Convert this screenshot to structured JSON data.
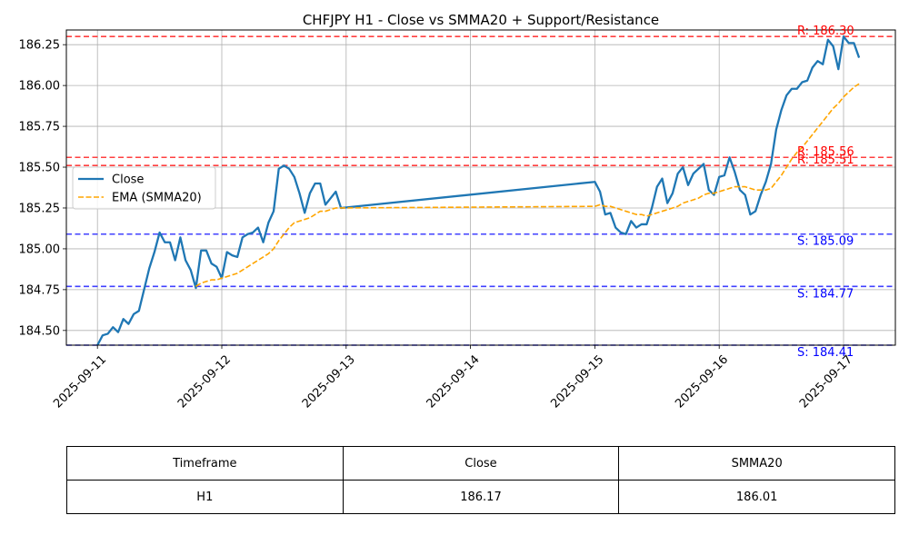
{
  "chart_data": {
    "type": "line",
    "title": "CHFJPY H1 - Close vs SMMA20 + Support/Resistance",
    "xlabel": "",
    "ylabel": "",
    "xlim": [
      "2025-09-10T18:00",
      "2025-09-17T10:00"
    ],
    "ylim": [
      184.41,
      186.34
    ],
    "x_ticks": [
      "2025-09-11",
      "2025-09-12",
      "2025-09-13",
      "2025-09-14",
      "2025-09-15",
      "2025-09-16",
      "2025-09-17"
    ],
    "y_ticks": [
      "184.50",
      "184.75",
      "185.00",
      "185.25",
      "185.50",
      "185.75",
      "186.00",
      "186.25"
    ],
    "grid": true,
    "legend_position": "left",
    "series": [
      {
        "name": "Close",
        "color": "#1f77b4",
        "style": "solid",
        "points": [
          [
            "2025-09-11T00:00",
            184.41
          ],
          [
            "2025-09-11T01:00",
            184.47
          ],
          [
            "2025-09-11T02:00",
            184.48
          ],
          [
            "2025-09-11T03:00",
            184.52
          ],
          [
            "2025-09-11T04:00",
            184.49
          ],
          [
            "2025-09-11T05:00",
            184.57
          ],
          [
            "2025-09-11T06:00",
            184.54
          ],
          [
            "2025-09-11T07:00",
            184.6
          ],
          [
            "2025-09-11T08:00",
            184.62
          ],
          [
            "2025-09-11T09:00",
            184.75
          ],
          [
            "2025-09-11T10:00",
            184.88
          ],
          [
            "2025-09-11T11:00",
            184.98
          ],
          [
            "2025-09-11T12:00",
            185.1
          ],
          [
            "2025-09-11T13:00",
            185.04
          ],
          [
            "2025-09-11T14:00",
            185.04
          ],
          [
            "2025-09-11T15:00",
            184.93
          ],
          [
            "2025-09-11T16:00",
            185.07
          ],
          [
            "2025-09-11T17:00",
            184.93
          ],
          [
            "2025-09-11T18:00",
            184.87
          ],
          [
            "2025-09-11T19:00",
            184.76
          ],
          [
            "2025-09-11T20:00",
            184.99
          ],
          [
            "2025-09-11T21:00",
            184.99
          ],
          [
            "2025-09-11T22:00",
            184.91
          ],
          [
            "2025-09-11T23:00",
            184.89
          ],
          [
            "2025-09-12T00:00",
            184.82
          ],
          [
            "2025-09-12T01:00",
            184.98
          ],
          [
            "2025-09-12T02:00",
            184.96
          ],
          [
            "2025-09-12T03:00",
            184.95
          ],
          [
            "2025-09-12T04:00",
            185.07
          ],
          [
            "2025-09-12T05:00",
            185.09
          ],
          [
            "2025-09-12T06:00",
            185.1
          ],
          [
            "2025-09-12T07:00",
            185.13
          ],
          [
            "2025-09-12T08:00",
            185.04
          ],
          [
            "2025-09-12T09:00",
            185.16
          ],
          [
            "2025-09-12T10:00",
            185.23
          ],
          [
            "2025-09-12T11:00",
            185.49
          ],
          [
            "2025-09-12T12:00",
            185.51
          ],
          [
            "2025-09-12T13:00",
            185.49
          ],
          [
            "2025-09-12T14:00",
            185.44
          ],
          [
            "2025-09-12T15:00",
            185.34
          ],
          [
            "2025-09-12T16:00",
            185.22
          ],
          [
            "2025-09-12T17:00",
            185.34
          ],
          [
            "2025-09-12T18:00",
            185.4
          ],
          [
            "2025-09-12T19:00",
            185.4
          ],
          [
            "2025-09-12T20:00",
            185.27
          ],
          [
            "2025-09-12T21:00",
            185.31
          ],
          [
            "2025-09-12T22:00",
            185.35
          ],
          [
            "2025-09-12T23:00",
            185.25
          ],
          [
            "2025-09-15T00:00",
            185.41
          ],
          [
            "2025-09-15T01:00",
            185.35
          ],
          [
            "2025-09-15T02:00",
            185.21
          ],
          [
            "2025-09-15T03:00",
            185.22
          ],
          [
            "2025-09-15T04:00",
            185.13
          ],
          [
            "2025-09-15T05:00",
            185.1
          ],
          [
            "2025-09-15T06:00",
            185.09
          ],
          [
            "2025-09-15T07:00",
            185.17
          ],
          [
            "2025-09-15T08:00",
            185.13
          ],
          [
            "2025-09-15T09:00",
            185.15
          ],
          [
            "2025-09-15T10:00",
            185.15
          ],
          [
            "2025-09-15T11:00",
            185.25
          ],
          [
            "2025-09-15T12:00",
            185.38
          ],
          [
            "2025-09-15T13:00",
            185.43
          ],
          [
            "2025-09-15T14:00",
            185.28
          ],
          [
            "2025-09-15T15:00",
            185.34
          ],
          [
            "2025-09-15T16:00",
            185.46
          ],
          [
            "2025-09-15T17:00",
            185.5
          ],
          [
            "2025-09-15T18:00",
            185.39
          ],
          [
            "2025-09-15T19:00",
            185.46
          ],
          [
            "2025-09-15T20:00",
            185.49
          ],
          [
            "2025-09-15T21:00",
            185.52
          ],
          [
            "2025-09-15T22:00",
            185.36
          ],
          [
            "2025-09-15T23:00",
            185.33
          ],
          [
            "2025-09-16T00:00",
            185.44
          ],
          [
            "2025-09-16T01:00",
            185.45
          ],
          [
            "2025-09-16T02:00",
            185.56
          ],
          [
            "2025-09-16T03:00",
            185.47
          ],
          [
            "2025-09-16T04:00",
            185.36
          ],
          [
            "2025-09-16T05:00",
            185.33
          ],
          [
            "2025-09-16T06:00",
            185.21
          ],
          [
            "2025-09-16T07:00",
            185.23
          ],
          [
            "2025-09-16T08:00",
            185.33
          ],
          [
            "2025-09-16T09:00",
            185.41
          ],
          [
            "2025-09-16T10:00",
            185.52
          ],
          [
            "2025-09-16T11:00",
            185.73
          ],
          [
            "2025-09-16T12:00",
            185.85
          ],
          [
            "2025-09-16T13:00",
            185.94
          ],
          [
            "2025-09-16T14:00",
            185.98
          ],
          [
            "2025-09-16T15:00",
            185.98
          ],
          [
            "2025-09-16T16:00",
            186.02
          ],
          [
            "2025-09-16T17:00",
            186.03
          ],
          [
            "2025-09-16T18:00",
            186.11
          ],
          [
            "2025-09-16T19:00",
            186.15
          ],
          [
            "2025-09-16T20:00",
            186.13
          ],
          [
            "2025-09-16T21:00",
            186.28
          ],
          [
            "2025-09-16T22:00",
            186.24
          ],
          [
            "2025-09-16T23:00",
            186.1
          ],
          [
            "2025-09-17T00:00",
            186.3
          ],
          [
            "2025-09-17T01:00",
            186.26
          ],
          [
            "2025-09-17T02:00",
            186.26
          ],
          [
            "2025-09-17T03:00",
            186.17
          ]
        ]
      },
      {
        "name": "EMA (SMMA20)",
        "color": "#ffa500",
        "style": "dashed",
        "points": [
          [
            "2025-09-11T19:00",
            184.77
          ],
          [
            "2025-09-11T20:00",
            184.79
          ],
          [
            "2025-09-11T21:00",
            184.8
          ],
          [
            "2025-09-11T22:00",
            184.81
          ],
          [
            "2025-09-11T23:00",
            184.81
          ],
          [
            "2025-09-12T00:00",
            184.82
          ],
          [
            "2025-09-12T01:00",
            184.83
          ],
          [
            "2025-09-12T02:00",
            184.84
          ],
          [
            "2025-09-12T03:00",
            184.85
          ],
          [
            "2025-09-12T04:00",
            184.87
          ],
          [
            "2025-09-12T05:00",
            184.89
          ],
          [
            "2025-09-12T06:00",
            184.91
          ],
          [
            "2025-09-12T07:00",
            184.93
          ],
          [
            "2025-09-12T08:00",
            184.95
          ],
          [
            "2025-09-12T09:00",
            184.97
          ],
          [
            "2025-09-12T10:00",
            185.0
          ],
          [
            "2025-09-12T11:00",
            185.05
          ],
          [
            "2025-09-12T12:00",
            185.09
          ],
          [
            "2025-09-12T13:00",
            185.13
          ],
          [
            "2025-09-12T14:00",
            185.16
          ],
          [
            "2025-09-12T15:00",
            185.17
          ],
          [
            "2025-09-12T16:00",
            185.18
          ],
          [
            "2025-09-12T17:00",
            185.19
          ],
          [
            "2025-09-12T18:00",
            185.21
          ],
          [
            "2025-09-12T19:00",
            185.23
          ],
          [
            "2025-09-12T20:00",
            185.23
          ],
          [
            "2025-09-12T21:00",
            185.24
          ],
          [
            "2025-09-12T22:00",
            185.25
          ],
          [
            "2025-09-12T23:00",
            185.25
          ],
          [
            "2025-09-15T00:00",
            185.26
          ],
          [
            "2025-09-15T01:00",
            185.27
          ],
          [
            "2025-09-15T02:00",
            185.26
          ],
          [
            "2025-09-15T03:00",
            185.26
          ],
          [
            "2025-09-15T04:00",
            185.25
          ],
          [
            "2025-09-15T05:00",
            185.24
          ],
          [
            "2025-09-15T06:00",
            185.23
          ],
          [
            "2025-09-15T07:00",
            185.22
          ],
          [
            "2025-09-15T08:00",
            185.21
          ],
          [
            "2025-09-15T09:00",
            185.21
          ],
          [
            "2025-09-15T10:00",
            185.2
          ],
          [
            "2025-09-15T11:00",
            185.21
          ],
          [
            "2025-09-15T12:00",
            185.22
          ],
          [
            "2025-09-15T13:00",
            185.23
          ],
          [
            "2025-09-15T14:00",
            185.24
          ],
          [
            "2025-09-15T15:00",
            185.25
          ],
          [
            "2025-09-15T16:00",
            185.26
          ],
          [
            "2025-09-15T17:00",
            185.28
          ],
          [
            "2025-09-15T18:00",
            185.29
          ],
          [
            "2025-09-15T19:00",
            185.3
          ],
          [
            "2025-09-15T20:00",
            185.31
          ],
          [
            "2025-09-15T21:00",
            185.33
          ],
          [
            "2025-09-15T22:00",
            185.34
          ],
          [
            "2025-09-15T23:00",
            185.34
          ],
          [
            "2025-09-16T00:00",
            185.35
          ],
          [
            "2025-09-16T01:00",
            185.36
          ],
          [
            "2025-09-16T02:00",
            185.37
          ],
          [
            "2025-09-16T03:00",
            185.38
          ],
          [
            "2025-09-16T04:00",
            185.38
          ],
          [
            "2025-09-16T05:00",
            185.38
          ],
          [
            "2025-09-16T06:00",
            185.37
          ],
          [
            "2025-09-16T07:00",
            185.36
          ],
          [
            "2025-09-16T08:00",
            185.36
          ],
          [
            "2025-09-16T09:00",
            185.36
          ],
          [
            "2025-09-16T10:00",
            185.37
          ],
          [
            "2025-09-16T11:00",
            185.41
          ],
          [
            "2025-09-16T12:00",
            185.45
          ],
          [
            "2025-09-16T13:00",
            185.5
          ],
          [
            "2025-09-16T14:00",
            185.55
          ],
          [
            "2025-09-16T15:00",
            185.59
          ],
          [
            "2025-09-16T16:00",
            185.62
          ],
          [
            "2025-09-16T17:00",
            185.66
          ],
          [
            "2025-09-16T18:00",
            185.7
          ],
          [
            "2025-09-16T19:00",
            185.74
          ],
          [
            "2025-09-16T20:00",
            185.78
          ],
          [
            "2025-09-16T21:00",
            185.82
          ],
          [
            "2025-09-16T22:00",
            185.86
          ],
          [
            "2025-09-16T23:00",
            185.89
          ],
          [
            "2025-09-17T00:00",
            185.93
          ],
          [
            "2025-09-17T01:00",
            185.96
          ],
          [
            "2025-09-17T02:00",
            185.99
          ],
          [
            "2025-09-17T03:00",
            186.01
          ]
        ]
      }
    ],
    "hlines": [
      {
        "value": 186.3,
        "kind": "resistance",
        "label": "R: 186.30",
        "color": "#ff0000"
      },
      {
        "value": 185.56,
        "kind": "resistance",
        "label": "R: 185.56",
        "color": "#ff0000"
      },
      {
        "value": 185.51,
        "kind": "resistance",
        "label": "R: 185.51",
        "color": "#ff0000"
      },
      {
        "value": 185.09,
        "kind": "support",
        "label": "S: 185.09",
        "color": "#0000ff"
      },
      {
        "value": 184.77,
        "kind": "support",
        "label": "S: 184.77",
        "color": "#0000ff"
      },
      {
        "value": 184.41,
        "kind": "support",
        "label": "S: 184.41",
        "color": "#0000ff"
      }
    ]
  },
  "table": {
    "headers": [
      "Timeframe",
      "Close",
      "SMMA20"
    ],
    "row": [
      "H1",
      "186.17",
      "186.01"
    ]
  }
}
